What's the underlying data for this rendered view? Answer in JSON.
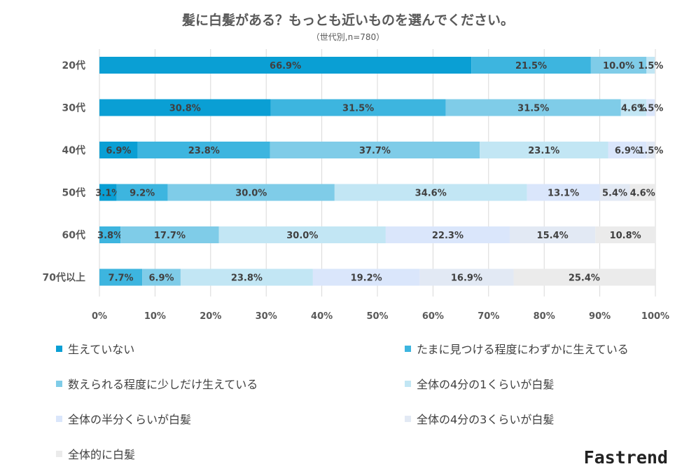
{
  "title": "髪に白髪がある？もっとも近いものを選んでください。",
  "subtitle": "（世代別,n=780）",
  "brand": "Fastrend",
  "chart_data": {
    "type": "bar",
    "orientation": "horizontal",
    "stacked": "percent",
    "categories": [
      "20代",
      "30代",
      "40代",
      "50代",
      "60代",
      "70代以上"
    ],
    "series": [
      {
        "name": "生えていない",
        "color": "#0a9fd4",
        "values": [
          66.9,
          30.8,
          6.9,
          3.1,
          0,
          0
        ]
      },
      {
        "name": "たまに見つける程度にわずかに生えている",
        "color": "#3db5df",
        "values": [
          21.5,
          31.5,
          23.8,
          9.2,
          3.8,
          7.7
        ]
      },
      {
        "name": "数えられる程度に少しだけ生えている",
        "color": "#7fcce8",
        "values": [
          10.0,
          31.5,
          37.7,
          30.0,
          17.7,
          6.9
        ]
      },
      {
        "name": "全体の4分の1くらいが白髪",
        "color": "#c2e6f4",
        "values": [
          1.5,
          4.6,
          23.1,
          34.6,
          30.0,
          23.8
        ]
      },
      {
        "name": "全体の半分くらいが白髪",
        "color": "#dae6fb",
        "values": [
          0,
          1.5,
          6.9,
          13.1,
          22.3,
          19.2
        ]
      },
      {
        "name": "全体の4分の3くらいが白髪",
        "color": "#e2e9f4",
        "values": [
          0,
          0,
          1.5,
          5.4,
          15.4,
          16.9
        ]
      },
      {
        "name": "全体的に白髪",
        "color": "#ebebeb",
        "values": [
          0,
          0,
          0,
          4.6,
          10.8,
          25.4
        ]
      }
    ],
    "data_labels": [
      [
        "66.9%",
        "21.5%",
        "10.0%",
        "1.5%",
        "",
        "",
        ""
      ],
      [
        "30.8%",
        "31.5%",
        "31.5%",
        "4.6%",
        "1.5%",
        "",
        ""
      ],
      [
        "6.9%",
        "23.8%",
        "37.7%",
        "23.1%",
        "6.9%",
        "1.5%",
        ""
      ],
      [
        "3.1%",
        "9.2%",
        "30.0%",
        "34.6%",
        "13.1%",
        "5.4%",
        "4.6%"
      ],
      [
        "",
        "3.8%",
        "17.7%",
        "30.0%",
        "22.3%",
        "15.4%",
        "10.8%"
      ],
      [
        "",
        "7.7%",
        "6.9%",
        "23.8%",
        "19.2%",
        "16.9%",
        "25.4%"
      ]
    ],
    "xlim": [
      0,
      100
    ],
    "xticks": [
      "0%",
      "10%",
      "20%",
      "30%",
      "40%",
      "50%",
      "60%",
      "70%",
      "80%",
      "90%",
      "100%"
    ],
    "grid": true,
    "legend_position": "bottom"
  }
}
